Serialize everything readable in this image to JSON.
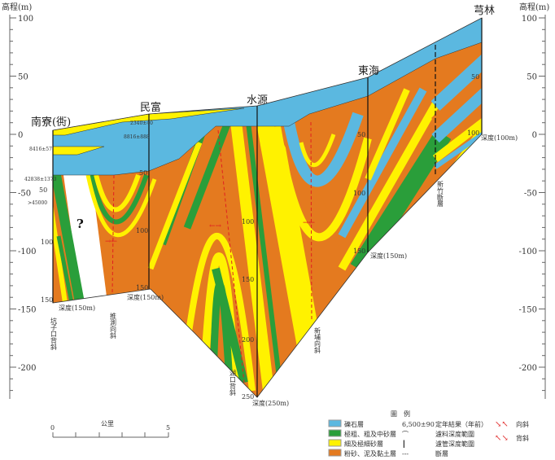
{
  "axis": {
    "title": "高程(m)",
    "ticks": [
      100,
      50,
      0,
      -50,
      -100,
      -150,
      -200
    ]
  },
  "boreholes": [
    {
      "name": "南寮(衖)",
      "depth_label": "深度(150m)",
      "depth_ticks": [
        "50",
        "100",
        "150"
      ],
      "structure": "坑子口背斜"
    },
    {
      "name": "民富",
      "depth_label": "深度(150m)",
      "depth_ticks": [
        "50",
        "100",
        "150"
      ],
      "structure": "推測向斜"
    },
    {
      "name": "水源",
      "depth_label": "深度(250m)",
      "depth_ticks": [
        "100",
        "150",
        "200",
        "250"
      ],
      "structure": "湖口背斜"
    },
    {
      "name": "東海",
      "depth_label": "深度(150m)",
      "depth_ticks": [
        "50",
        "100",
        "150"
      ],
      "structure": "新埔向斜"
    },
    {
      "name": "芎林",
      "depth_label": "深度(100m)",
      "depth_ticks": [
        "50",
        "100"
      ],
      "structure": "新竹斷層"
    }
  ],
  "dates": [
    "8416±57",
    "42838±1373",
    ">45000",
    "2340±40",
    "8816±888"
  ],
  "unknown_mark": "?",
  "legend": {
    "title": "圖　例",
    "items": [
      {
        "label": "礫石層",
        "color": "#5bb8e0"
      },
      {
        "label": "極粗、粗及中砂層",
        "color": "#2a9e3a"
      },
      {
        "label": "細及極細砂層",
        "color": "#fff200"
      },
      {
        "label": "粉砂、泥及黏土層",
        "color": "#e47a1f"
      }
    ],
    "symbols": [
      {
        "sample": "6,500±90",
        "label": "定年結果（年前）"
      },
      {
        "sample": "⌒",
        "label": "濾料深度範圍"
      },
      {
        "sample": "┃",
        "label": "濾管深度範圍"
      },
      {
        "sample": "---",
        "label": "斷層"
      }
    ],
    "structures": [
      {
        "label": "向斜"
      },
      {
        "label": "背斜"
      }
    ]
  },
  "scale": {
    "label": "公里",
    "start": "0",
    "end": "5"
  }
}
